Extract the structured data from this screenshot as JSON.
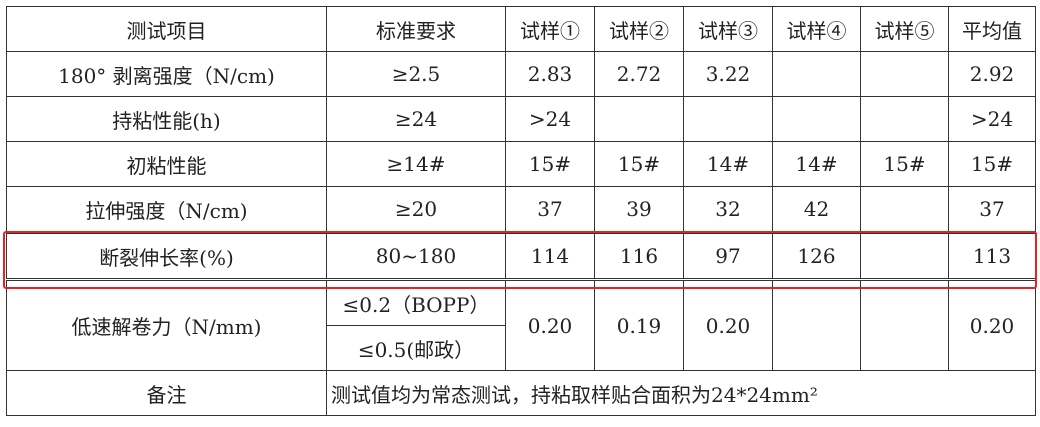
{
  "header": [
    "测试项目",
    "标准要求",
    "试样①",
    "试样②",
    "试样③",
    "试样④",
    "试样⑤",
    "平均值"
  ],
  "rows": [
    {
      "item": "180° 剥离强度（N/cm)",
      "std": "≥2.5",
      "s": [
        "2.83",
        "2.72",
        "3.22",
        "",
        ""
      ],
      "avg": "2.92"
    },
    {
      "item": "持粘性能(h)",
      "std": "≥24",
      "s": [
        ">24",
        "",
        "",
        "",
        ""
      ],
      "avg": ">24"
    },
    {
      "item": "初粘性能",
      "std": "≥14#",
      "s": [
        "15#",
        "15#",
        "14#",
        "14#",
        "15#"
      ],
      "avg": "15#"
    },
    {
      "item": "拉伸强度（N/cm)",
      "std": "≥20",
      "s": [
        "37",
        "39",
        "32",
        "42",
        ""
      ],
      "avg": "37"
    },
    {
      "item": "断裂伸长率(%)",
      "std": "80~180",
      "s": [
        "114",
        "116",
        "97",
        "126",
        ""
      ],
      "avg": "113"
    }
  ],
  "unwind": {
    "item": "低速解卷力（N/mm)",
    "std1": "≤0.2（BOPP）",
    "std2": "≤0.5(邮政）",
    "s": [
      "0.20",
      "0.19",
      "0.20",
      "",
      ""
    ],
    "avg": "0.20"
  },
  "remark": {
    "label": "备注",
    "text": "测试值均为常态测试，持粘取样贴合面积为24*24mm²"
  },
  "highlight_color": "#e8231f"
}
